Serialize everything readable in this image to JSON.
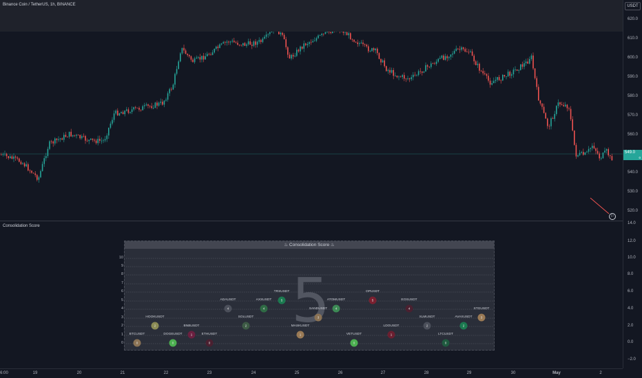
{
  "header": {
    "title": "Binance Coin / TetherUS, 1h, BINANCE"
  },
  "price_axis": {
    "currency": "USDT",
    "labels": [
      "620.0",
      "610.0",
      "600.0",
      "590.0",
      "580.0",
      "570.0",
      "560.0",
      "540.0",
      "530.0",
      "520.0"
    ],
    "last_price": "549.0",
    "last_price_time": "0"
  },
  "indicator": {
    "title": "Consolidation Score",
    "axis_labels": [
      "14.0",
      "12.0",
      "10.0",
      "8.0",
      "6.0",
      "4.0",
      "2.0",
      "0.0",
      "−2.0"
    ],
    "panel_title": "♨ Consolidation Score ♨",
    "score": "5",
    "row_labels": [
      "10",
      "9",
      "8",
      "7",
      "6",
      "5",
      "4",
      "3",
      "2",
      "1",
      "0"
    ],
    "symbols": [
      {
        "name": "BTCUSDT",
        "score": "0",
        "color": "#8b7355"
      },
      {
        "name": "HOOKUSDT",
        "score": "2",
        "color": "#8b8b55"
      },
      {
        "name": "DOGEUSDT",
        "score": "0",
        "color": "#4caf50"
      },
      {
        "name": "BNBUSDT",
        "score": "1",
        "color": "#6b2040"
      },
      {
        "name": "ETHUSDT",
        "score": "0",
        "color": "#4a2030"
      },
      {
        "name": "ADAUSDT",
        "score": "4",
        "color": "#4b4f5a"
      },
      {
        "name": "SOLUSDT",
        "score": "2",
        "color": "#3d5a45"
      },
      {
        "name": "AXSUSDT",
        "score": "4",
        "color": "#2f6b45"
      },
      {
        "name": "TRXUSDT",
        "score": "5",
        "color": "#1b7a50"
      },
      {
        "name": "MASKUSDT",
        "score": "1",
        "color": "#9a7a55"
      },
      {
        "name": "SANDUSDT",
        "score": "3",
        "color": "#8b7355"
      },
      {
        "name": "ATOMUSDT",
        "score": "4",
        "color": "#3d8a55"
      },
      {
        "name": "VETUSDT",
        "score": "0",
        "color": "#4caf50"
      },
      {
        "name": "OPUSDT",
        "score": "5",
        "color": "#7a2030"
      },
      {
        "name": "LDOUSDT",
        "score": "1",
        "color": "#6b1f30"
      },
      {
        "name": "EOSUSDT",
        "score": "4",
        "color": "#4a2030"
      },
      {
        "name": "XLMUSDT",
        "score": "2",
        "color": "#4b4f5a"
      },
      {
        "name": "LTCUSDT",
        "score": "0",
        "color": "#1f5a3f"
      },
      {
        "name": "AVAXUSDT",
        "score": "2",
        "color": "#1b7a50"
      },
      {
        "name": "STGUSDT",
        "score": "3",
        "color": "#9a7a55"
      }
    ]
  },
  "time_axis": {
    "labels": [
      "6:00",
      "19",
      "20",
      "21",
      "22",
      "23",
      "24",
      "25",
      "26",
      "27",
      "28",
      "29",
      "30",
      "May",
      "2"
    ]
  },
  "colors": {
    "up": "#26a69a",
    "down": "#ef5350",
    "background": "#131722"
  }
}
